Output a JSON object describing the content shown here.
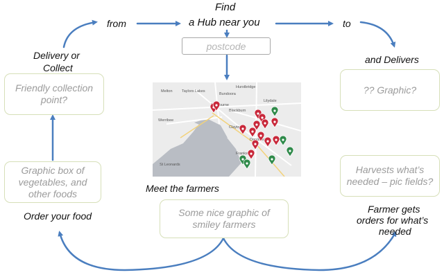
{
  "header": {
    "find": "Find",
    "hub": "a Hub near you",
    "from": "from",
    "to": "to"
  },
  "postcode": {
    "placeholder": "postcode"
  },
  "left": {
    "delivery_line1": "Delivery or",
    "delivery_line2": "Collect",
    "collection_box": "Friendly collection point?",
    "graphic_box": "Graphic box of vegetables, and other foods",
    "order_label": "Order your food"
  },
  "right": {
    "delivers_label": "and Delivers",
    "graphic_box": "?? Graphic?",
    "harvest_box": "Harvests what’s needed – pic fields?",
    "farmer_line1": "Farmer gets",
    "farmer_line2": "orders for what’s",
    "farmer_line3": "needed"
  },
  "bottom": {
    "meet_label": "Meet the farmers",
    "farmers_box": "Some nice graphic of smiley farmers"
  },
  "map": {
    "labels": [
      "Hurstbridge",
      "Melton",
      "Taylors Lakes",
      "Bundoora",
      "Melbourne",
      "Blackburn",
      "Lilydale",
      "Werribee",
      "Clayton",
      "Dandenong",
      "Frankston",
      "St Leonards"
    ],
    "pin_colors": {
      "red": "#c8283a",
      "green": "#2f8a4a"
    }
  },
  "colors": {
    "arrow": "#4a7ebf",
    "box_border": "#d6dfb8",
    "placeholder": "#9b9b9b"
  }
}
